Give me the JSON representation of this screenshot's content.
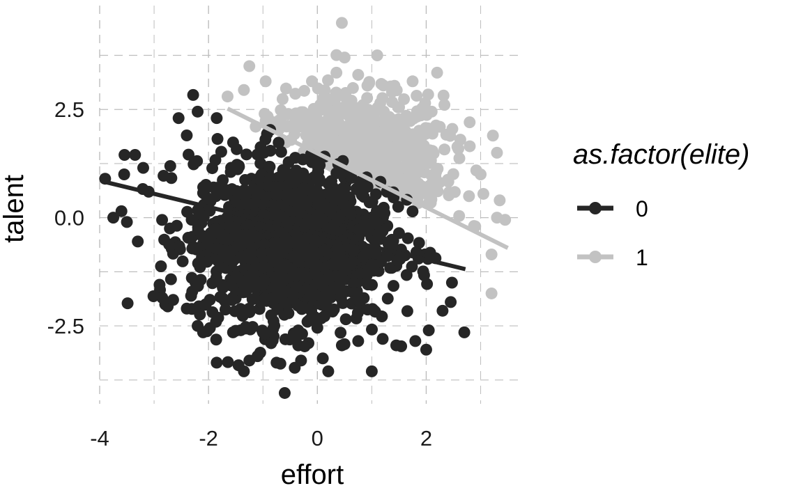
{
  "chart_data": {
    "type": "scatter",
    "title": "",
    "xlabel": "effort",
    "ylabel": "talent",
    "xlim": [
      -4.0,
      3.8
    ],
    "ylim": [
      -4.3,
      4.9
    ],
    "x_ticks": [
      -4,
      -2,
      0,
      2
    ],
    "x_tick_labels": [
      "-4",
      "-2",
      "0",
      "2"
    ],
    "y_ticks": [
      -2.5,
      0.0,
      2.5
    ],
    "y_tick_labels": [
      "-2.5",
      "0.0",
      "2.5"
    ],
    "grid": true,
    "grid_style": "dashed",
    "legend": {
      "title": "as.factor(elite)",
      "placement": "right"
    },
    "series": [
      {
        "name": "0",
        "color": "#262626",
        "fit_line": {
          "x": [
            -3.95,
            2.72
          ],
          "y": [
            0.84,
            -1.19
          ]
        },
        "outlier_points": [
          [
            -3.9,
            0.9
          ],
          [
            -3.75,
            0.0
          ],
          [
            -3.55,
            1.0
          ],
          [
            -3.6,
            0.15
          ],
          [
            -3.5,
            -0.1
          ],
          [
            -3.35,
            1.45
          ],
          [
            -3.3,
            -0.55
          ],
          [
            -3.2,
            1.15
          ],
          [
            -3.1,
            0.6
          ],
          [
            -2.9,
            -1.55
          ],
          [
            -2.85,
            -1.85
          ],
          [
            -2.75,
            -2.05
          ],
          [
            -2.65,
            -1.9
          ],
          [
            -2.55,
            2.3
          ],
          [
            -2.4,
            -2.1
          ],
          [
            -2.2,
            -2.5
          ],
          [
            -2.1,
            -2.65
          ],
          [
            -2.05,
            -2.0
          ],
          [
            -1.85,
            -3.35
          ],
          [
            -1.55,
            -2.65
          ],
          [
            -1.35,
            -3.55
          ],
          [
            -1.25,
            -3.3
          ],
          [
            -1.1,
            -3.2
          ],
          [
            -1.0,
            -2.65
          ],
          [
            -0.85,
            -2.9
          ],
          [
            -0.75,
            -3.35
          ],
          [
            -0.6,
            -4.05
          ],
          [
            -0.3,
            -3.3
          ],
          [
            0.1,
            -3.25
          ],
          [
            0.2,
            -3.55
          ],
          [
            0.45,
            -2.95
          ],
          [
            0.75,
            -2.85
          ],
          [
            1.0,
            -3.55
          ],
          [
            1.2,
            -2.8
          ],
          [
            1.45,
            -2.95
          ],
          [
            1.8,
            -2.85
          ],
          [
            2.0,
            -3.05
          ],
          [
            2.3,
            -2.15
          ],
          [
            2.45,
            -1.95
          ],
          [
            2.7,
            -2.65
          ],
          [
            -2.2,
            2.45
          ],
          [
            -1.85,
            2.3
          ],
          [
            -2.4,
            1.9
          ]
        ],
        "density": {
          "mean": [
            -0.5,
            -0.55
          ],
          "sd": [
            0.9,
            0.95
          ],
          "n": 1400
        }
      },
      {
        "name": "1",
        "color": "#c2c2c2",
        "fit_line": {
          "x": [
            -1.65,
            3.5
          ],
          "y": [
            2.52,
            -0.7
          ]
        },
        "outlier_points": [
          [
            0.45,
            4.5
          ],
          [
            1.1,
            3.75
          ],
          [
            0.5,
            3.7
          ],
          [
            -1.25,
            3.5
          ],
          [
            0.35,
            3.35
          ],
          [
            0.75,
            3.3
          ],
          [
            2.2,
            3.35
          ],
          [
            0.95,
            3.1
          ],
          [
            -0.95,
            3.15
          ],
          [
            -0.1,
            3.15
          ],
          [
            1.75,
            3.15
          ],
          [
            -1.65,
            2.8
          ],
          [
            -1.35,
            2.95
          ],
          [
            2.1,
            2.45
          ],
          [
            2.25,
            2.1
          ],
          [
            2.8,
            1.65
          ],
          [
            3.3,
            1.5
          ],
          [
            3.0,
            1.0
          ],
          [
            3.05,
            0.55
          ],
          [
            3.35,
            0.4
          ],
          [
            3.3,
            0.0
          ],
          [
            3.2,
            -0.85
          ],
          [
            3.2,
            -1.75
          ],
          [
            3.45,
            -0.05
          ],
          [
            2.9,
            -0.2
          ]
        ],
        "density": {
          "mean": [
            0.7,
            1.3
          ],
          "sd": [
            0.8,
            0.75
          ],
          "n": 1100
        }
      }
    ]
  }
}
